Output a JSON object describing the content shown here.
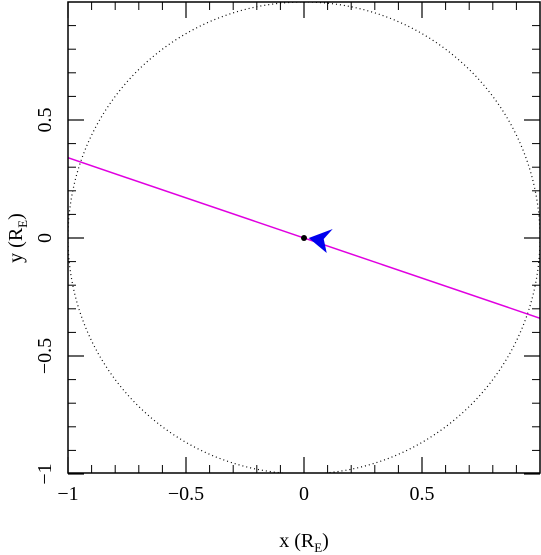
{
  "chart_data": {
    "type": "scatter",
    "xlabel": {
      "text": "x (R",
      "sub": "E",
      "close": ")"
    },
    "ylabel": {
      "text": "y (R",
      "sub": "E",
      "close": ")"
    },
    "xlim": [
      -1,
      1
    ],
    "ylim": [
      -1,
      1
    ],
    "x_ticks": [
      {
        "value": -1,
        "label": "−1"
      },
      {
        "value": -0.5,
        "label": "−0.5"
      },
      {
        "value": 0,
        "label": "0"
      },
      {
        "value": 0.5,
        "label": "0.5"
      }
    ],
    "y_ticks": [
      {
        "value": -1,
        "label": "−1"
      },
      {
        "value": -0.5,
        "label": "−0.5"
      },
      {
        "value": 0,
        "label": "0"
      },
      {
        "value": 0.5,
        "label": "0.5"
      }
    ],
    "minor_step": 0.1,
    "grid": false,
    "circle": {
      "center": [
        0,
        0
      ],
      "radius": 1,
      "color": "#000000",
      "style": "dotted"
    },
    "line": {
      "points": [
        [
          -1,
          0.34
        ],
        [
          1,
          -0.34
        ]
      ],
      "color": "#e000e0"
    },
    "point": {
      "x": 0,
      "y": 0,
      "color": "#000000"
    },
    "arrow": {
      "tip": [
        0.02,
        0
      ],
      "color": "#0000ee"
    }
  }
}
